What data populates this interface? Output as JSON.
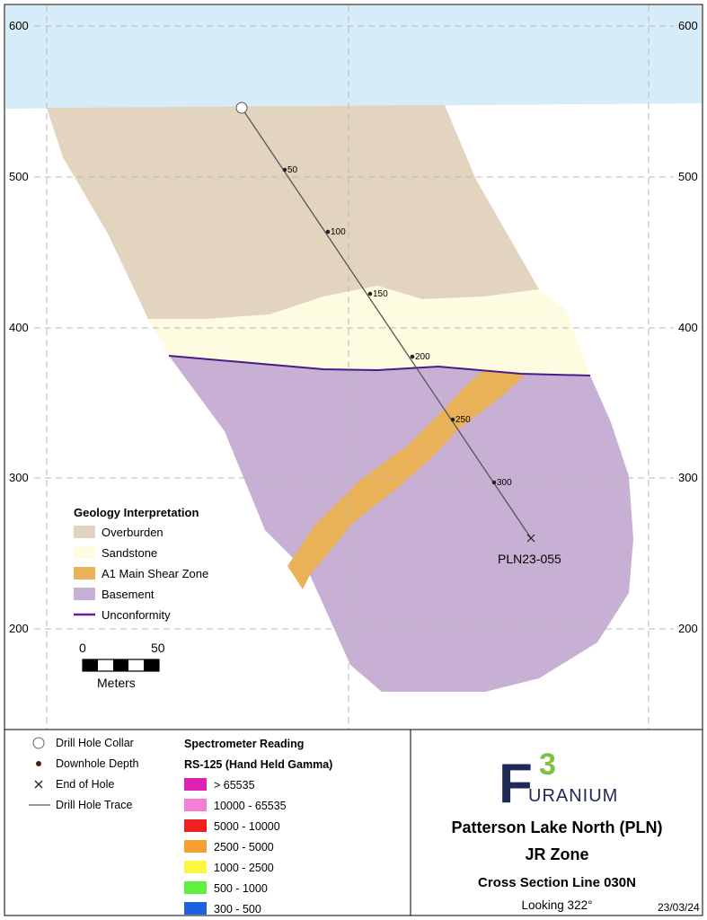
{
  "y_axis": {
    "ticks": [
      "600",
      "500",
      "400",
      "300",
      "200"
    ]
  },
  "drill_hole": {
    "name": "PLN23-055",
    "depth_markers": [
      "50",
      "100",
      "150",
      "200",
      "250",
      "300"
    ]
  },
  "geology_legend": {
    "title": "Geology Interpretation",
    "items": [
      {
        "label": "Overburden",
        "color": "#e3d4bf"
      },
      {
        "label": "Sandstone",
        "color": "#fdfce0"
      },
      {
        "label": "A1 Main Shear Zone",
        "color": "#e9b158"
      },
      {
        "label": "Basement",
        "color": "#c8b0d4"
      },
      {
        "label": "Unconformity",
        "color": "#6a1a9a"
      }
    ]
  },
  "scale_bar": {
    "start": "0",
    "end": "50",
    "unit": "Meters"
  },
  "symbol_legend": {
    "items": [
      {
        "label": "Drill Hole Collar",
        "icon": "circle-icon"
      },
      {
        "label": "Downhole Depth",
        "icon": "dot-icon"
      },
      {
        "label": "End of Hole",
        "icon": "cross-icon"
      },
      {
        "label": "Drill Hole Trace",
        "icon": "line-icon"
      }
    ]
  },
  "spectrometer": {
    "title": "Spectrometer Reading",
    "subtitle": "RS-125 (Hand Held Gamma)",
    "items": [
      {
        "label": "> 65535",
        "color": "#e020b0"
      },
      {
        "label": "10000 - 65535",
        "color": "#f47ed6"
      },
      {
        "label": "5000 - 10000",
        "color": "#f02020"
      },
      {
        "label": "2500 - 5000",
        "color": "#f5a030"
      },
      {
        "label": "1000 - 2500",
        "color": "#f8f840"
      },
      {
        "label": "500 - 1000",
        "color": "#60f040"
      },
      {
        "label": "300 - 500",
        "color": "#2060e0"
      }
    ]
  },
  "logo": {
    "letter": "F",
    "number": "3",
    "text": "URANIUM"
  },
  "title_block": {
    "line1": "Patterson Lake North (PLN)",
    "line2": "JR Zone",
    "line3": "Cross Section Line 030N",
    "looking": "Looking 322°",
    "date": "23/03/24"
  }
}
